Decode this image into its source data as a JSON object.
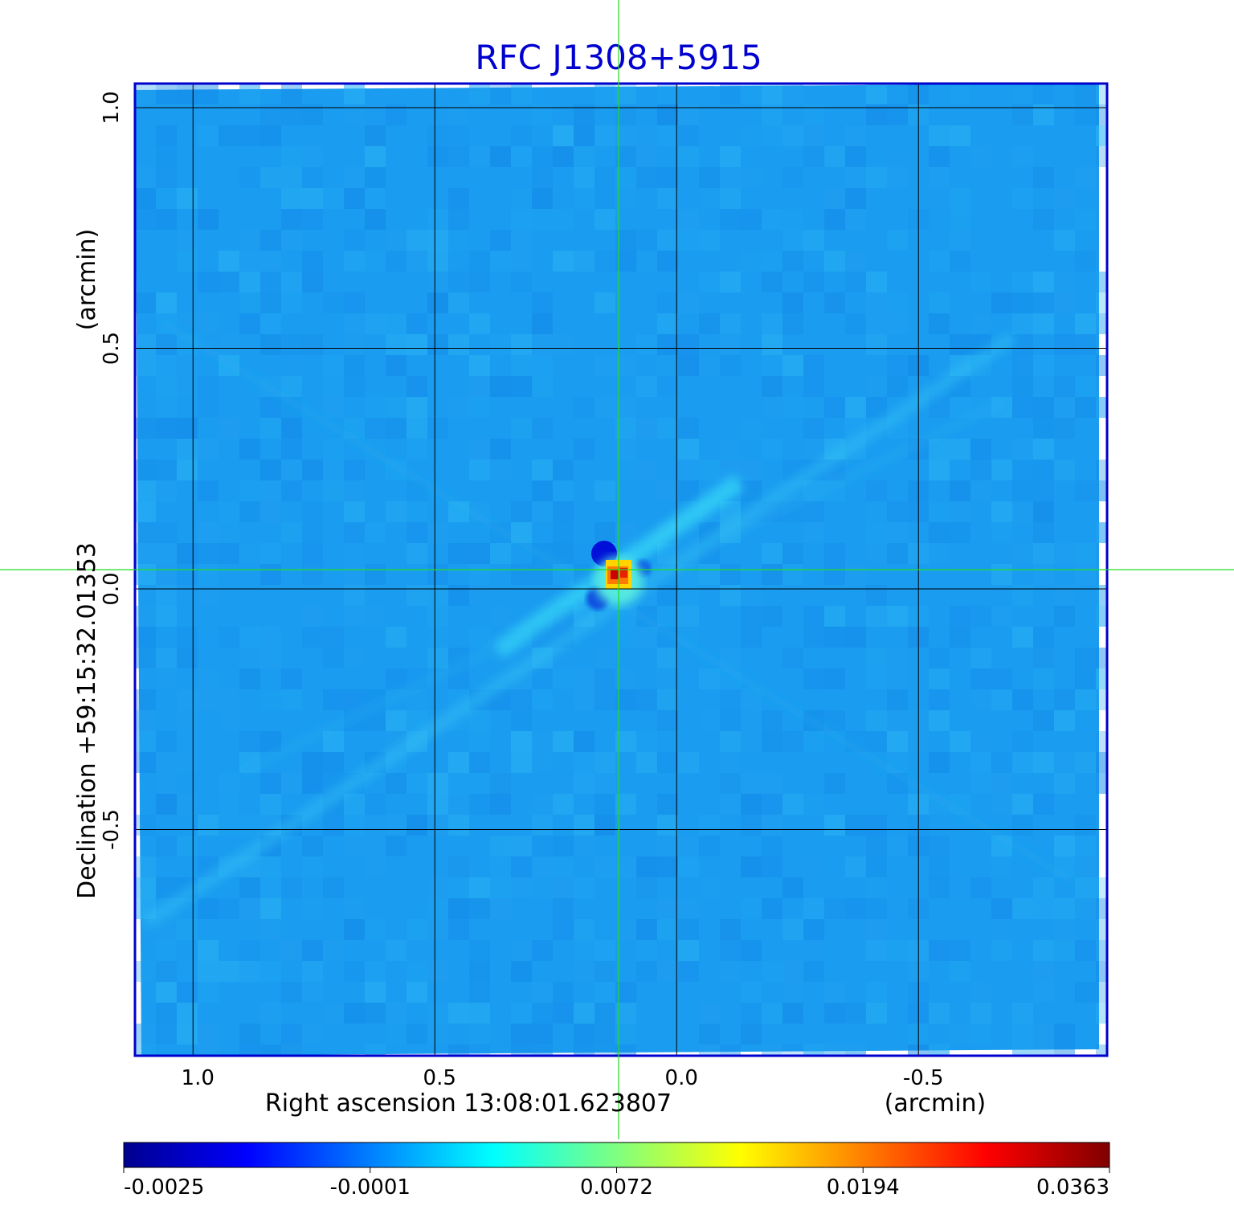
{
  "chart_data": {
    "type": "heatmap",
    "title": "RFC J1308+5915",
    "xlabel": "Right ascension  13:08:01.623807",
    "xunit": "(arcmin)",
    "ylabel": "Declination  +59:15:32.01353",
    "yunit": "(arcmin)",
    "x_ticks": [
      {
        "value": 1.0,
        "label": "1.0"
      },
      {
        "value": 0.5,
        "label": "0.5"
      },
      {
        "value": 0.0,
        "label": "0.0"
      },
      {
        "value": -0.5,
        "label": "-0.5"
      }
    ],
    "y_ticks": [
      {
        "value": 1.0,
        "label": "1.0"
      },
      {
        "value": 0.5,
        "label": "0.5"
      },
      {
        "value": 0.0,
        "label": "0.0"
      },
      {
        "value": -0.5,
        "label": "-0.5"
      }
    ],
    "xlim": [
      1.12,
      -0.89
    ],
    "ylim": [
      -0.97,
      1.05
    ],
    "grid": true,
    "crosshair": {
      "x": 0.12,
      "y": 0.04
    },
    "peak": {
      "x": 0.12,
      "y": 0.03,
      "value": 0.0363
    },
    "colorbar": {
      "colormap": "jet",
      "ticks": [
        "-0.0025",
        "-0.0001",
        "0.0072",
        "0.0194",
        "0.0363"
      ]
    },
    "colors": {
      "frame": "#0000cc",
      "title": "#0000d0",
      "crosshair": "#22dd22",
      "grid": "#000000",
      "background_field": "#1a9cf0"
    }
  }
}
